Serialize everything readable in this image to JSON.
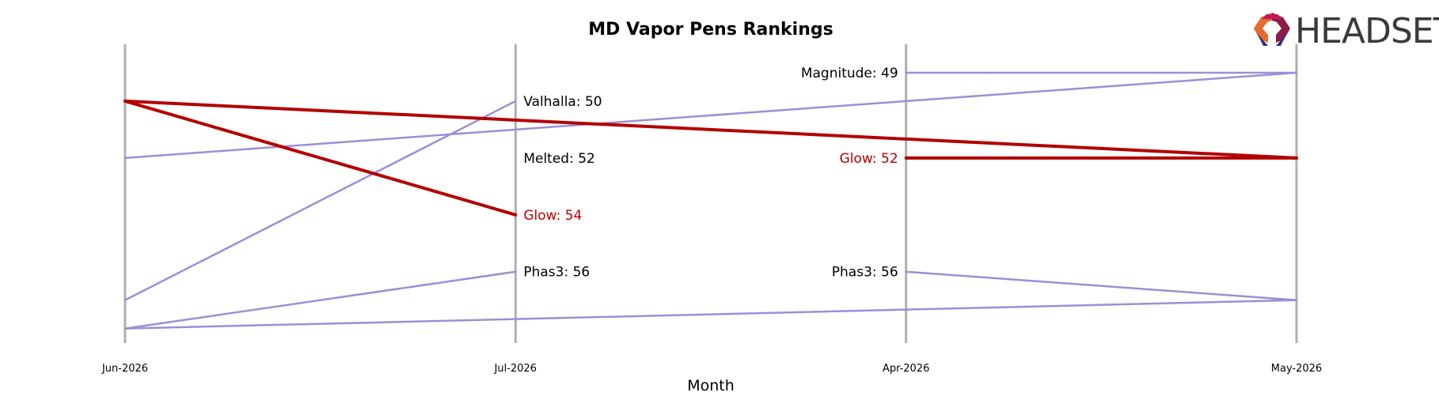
{
  "brand": {
    "name": "HEADSET",
    "logo_icon": "headset-logo-icon"
  },
  "colors": {
    "highlight": "#b30000",
    "other": "#9b8fd6",
    "axis_line": "#b0b0b0",
    "text": "#000000"
  },
  "chart_data": {
    "type": "bump",
    "title": "MD Vapor Pens Rankings",
    "xlabel": "Month",
    "ylabel": "",
    "categories": [
      "Jun-2026",
      "Jul-2026",
      "Apr-2026",
      "May-2026"
    ],
    "y_inverted": true,
    "highlight_series": "Glow",
    "series": [
      {
        "name": "Glow",
        "highlight": true,
        "segments": [
          {
            "points": [
              {
                "x": "Jun-2026",
                "rank": 50
              },
              {
                "x": "Jul-2026",
                "rank": 54
              }
            ]
          },
          {
            "points": [
              {
                "x": "Jun-2026",
                "rank": 50
              },
              {
                "x": "May-2026",
                "rank": 52
              }
            ]
          },
          {
            "points": [
              {
                "x": "Apr-2026",
                "rank": 52
              },
              {
                "x": "May-2026",
                "rank": 52
              }
            ]
          }
        ]
      },
      {
        "name": "Valhalla",
        "highlight": false,
        "segments": [
          {
            "points": [
              {
                "x": "Jun-2026",
                "rank": 57
              },
              {
                "x": "Jul-2026",
                "rank": 50
              }
            ]
          }
        ]
      },
      {
        "name": "Magnitude",
        "highlight": false,
        "segments": [
          {
            "points": [
              {
                "x": "Jun-2026",
                "rank": 52
              },
              {
                "x": "May-2026",
                "rank": 49
              }
            ]
          },
          {
            "points": [
              {
                "x": "Apr-2026",
                "rank": 49
              },
              {
                "x": "May-2026",
                "rank": 49
              }
            ]
          }
        ]
      },
      {
        "name": "Phas3",
        "highlight": false,
        "segments": [
          {
            "points": [
              {
                "x": "Jun-2026",
                "rank": 58
              },
              {
                "x": "Jul-2026",
                "rank": 56
              }
            ]
          },
          {
            "points": [
              {
                "x": "Apr-2026",
                "rank": 56
              },
              {
                "x": "May-2026",
                "rank": 57
              }
            ]
          }
        ]
      },
      {
        "name": "Melted",
        "highlight": false,
        "segments": [
          {
            "points": [
              {
                "x": "Jun-2026",
                "rank": 58
              },
              {
                "x": "May-2026",
                "rank": 57
              }
            ]
          }
        ]
      }
    ],
    "labels": [
      {
        "x": "Jul-2026",
        "rank": 50,
        "text": "Valhalla: 50",
        "side": "right",
        "highlight": false
      },
      {
        "x": "Jul-2026",
        "rank": 52,
        "text": "Melted: 52",
        "side": "right",
        "highlight": false
      },
      {
        "x": "Jul-2026",
        "rank": 54,
        "text": "Glow: 54",
        "side": "right",
        "highlight": true
      },
      {
        "x": "Jul-2026",
        "rank": 56,
        "text": "Phas3: 56",
        "side": "right",
        "highlight": false
      },
      {
        "x": "Apr-2026",
        "rank": 49,
        "text": "Magnitude: 49",
        "side": "left",
        "highlight": false
      },
      {
        "x": "Apr-2026",
        "rank": 52,
        "text": "Glow: 52",
        "side": "left",
        "highlight": true
      },
      {
        "x": "Apr-2026",
        "rank": 56,
        "text": "Phas3: 56",
        "side": "left",
        "highlight": false
      }
    ],
    "grid": false,
    "legend": "none"
  }
}
